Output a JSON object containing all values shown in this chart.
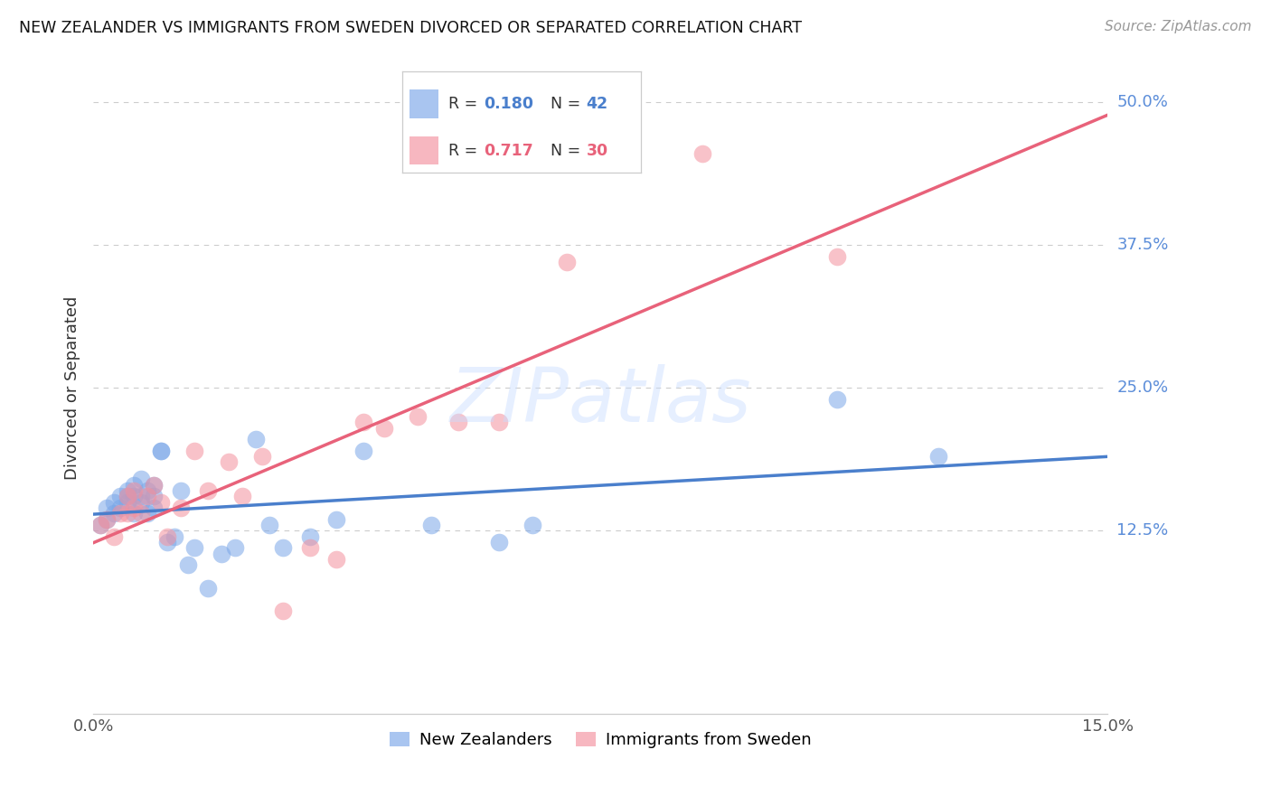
{
  "title": "NEW ZEALANDER VS IMMIGRANTS FROM SWEDEN DIVORCED OR SEPARATED CORRELATION CHART",
  "source": "Source: ZipAtlas.com",
  "ylabel": "Divorced or Separated",
  "yticks_labels": [
    "12.5%",
    "25.0%",
    "37.5%",
    "50.0%"
  ],
  "ytick_vals": [
    0.125,
    0.25,
    0.375,
    0.5
  ],
  "xlim": [
    0.0,
    0.15
  ],
  "ylim": [
    -0.035,
    0.535
  ],
  "color_blue": "#7BA7E8",
  "color_pink": "#F4919E",
  "color_blue_line": "#4A7FCC",
  "color_pink_line": "#E8627A",
  "color_grid": "#CCCCCC",
  "color_ytick": "#5B8DD9",
  "watermark_text": "ZIPatlas",
  "nz_x": [
    0.001,
    0.002,
    0.002,
    0.003,
    0.003,
    0.004,
    0.004,
    0.005,
    0.005,
    0.005,
    0.006,
    0.006,
    0.006,
    0.007,
    0.007,
    0.007,
    0.008,
    0.008,
    0.009,
    0.009,
    0.009,
    0.01,
    0.01,
    0.011,
    0.012,
    0.013,
    0.014,
    0.015,
    0.017,
    0.019,
    0.021,
    0.024,
    0.026,
    0.028,
    0.032,
    0.036,
    0.04,
    0.05,
    0.06,
    0.065,
    0.11,
    0.125
  ],
  "nz_y": [
    0.13,
    0.145,
    0.135,
    0.15,
    0.14,
    0.155,
    0.145,
    0.16,
    0.155,
    0.15,
    0.165,
    0.155,
    0.14,
    0.17,
    0.155,
    0.15,
    0.16,
    0.14,
    0.165,
    0.155,
    0.145,
    0.195,
    0.195,
    0.115,
    0.12,
    0.16,
    0.095,
    0.11,
    0.075,
    0.105,
    0.11,
    0.205,
    0.13,
    0.11,
    0.12,
    0.135,
    0.195,
    0.13,
    0.115,
    0.13,
    0.24,
    0.19
  ],
  "sw_x": [
    0.001,
    0.002,
    0.003,
    0.004,
    0.005,
    0.005,
    0.006,
    0.006,
    0.007,
    0.008,
    0.009,
    0.01,
    0.011,
    0.013,
    0.015,
    0.017,
    0.02,
    0.022,
    0.025,
    0.028,
    0.032,
    0.036,
    0.04,
    0.043,
    0.048,
    0.054,
    0.06,
    0.07,
    0.09,
    0.11
  ],
  "sw_y": [
    0.13,
    0.135,
    0.12,
    0.14,
    0.155,
    0.14,
    0.16,
    0.145,
    0.14,
    0.155,
    0.165,
    0.15,
    0.12,
    0.145,
    0.195,
    0.16,
    0.185,
    0.155,
    0.19,
    0.055,
    0.11,
    0.1,
    0.22,
    0.215,
    0.225,
    0.22,
    0.22,
    0.36,
    0.455,
    0.365
  ],
  "legend_entries": [
    {
      "color": "#7BA7E8",
      "r_label": "R = ",
      "r_val": "0.180",
      "n_label": "N = ",
      "n_val": "42"
    },
    {
      "color": "#F4919E",
      "r_label": "R = ",
      "r_val": "0.717",
      "n_label": "N = ",
      "n_val": "30"
    }
  ],
  "bottom_legend": [
    "New Zealanders",
    "Immigrants from Sweden"
  ]
}
